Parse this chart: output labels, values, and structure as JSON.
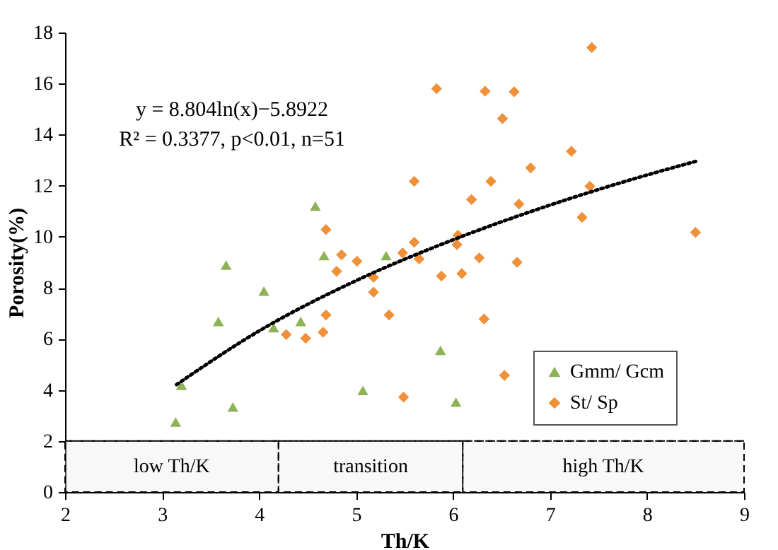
{
  "chart_data": {
    "type": "scatter",
    "xlabel": "Th/K",
    "ylabel": "Porosity(%)",
    "xlim": [
      2,
      9
    ],
    "xticks": [
      2,
      3,
      4,
      5,
      6,
      7,
      8,
      9
    ],
    "ylim": [
      0,
      18
    ],
    "yticks": [
      0,
      2,
      4,
      6,
      8,
      10,
      12,
      14,
      16,
      18
    ],
    "grid": false,
    "legend": "bottom right",
    "annotations": [
      "y = 8.804ln(x)−5.8922",
      "R² = 0.3377, p<0.01, n=51"
    ],
    "ref_lines": [
      {
        "axis": "y",
        "value": 2,
        "line_style": "dashed"
      }
    ],
    "bands": [
      {
        "axis": "x",
        "from": 2,
        "to": 4.2,
        "label": "low Th/K",
        "color": "#e8e8e8"
      },
      {
        "axis": "x",
        "from": 4.2,
        "to": 6.1,
        "label": "transition",
        "color": "#e8e8e8"
      },
      {
        "axis": "x",
        "from": 6.1,
        "to": 9,
        "label": "high Th/K",
        "color": "#e8e8e8"
      }
    ],
    "series": [
      {
        "name": "Gmm/ Gcm",
        "color": "#8db356",
        "marker": "triangle",
        "x": [
          3.14,
          3.2,
          3.73,
          5.07,
          5.87,
          6.03,
          4.58,
          3.66,
          4.67,
          5.31,
          4.05,
          3.58,
          4.43,
          4.15
        ],
        "values": [
          2.74,
          4.18,
          3.33,
          3.98,
          5.55,
          3.52,
          11.2,
          8.89,
          9.26,
          9.26,
          7.87,
          6.68,
          6.68,
          6.44
        ]
      },
      {
        "name": "St/ Sp",
        "color": "#f0913a",
        "marker": "diamond",
        "x": [
          5.6,
          4.69,
          5.6,
          4.85,
          5.01,
          5.48,
          4.8,
          5.18,
          5.18,
          5.34,
          4.69,
          4.28,
          4.48,
          4.66,
          7.43,
          5.83,
          6.33,
          6.63,
          6.51,
          7.22,
          6.8,
          6.39,
          7.41,
          6.19,
          6.68,
          7.33,
          8.5,
          5.65,
          6.05,
          6.04,
          6.27,
          6.66,
          5.88,
          6.09,
          6.32,
          5.49,
          6.53
        ],
        "values": [
          12.17,
          10.28,
          9.78,
          9.29,
          9.04,
          9.37,
          8.65,
          8.41,
          7.83,
          6.94,
          6.94,
          6.17,
          6.02,
          6.26,
          17.41,
          15.8,
          15.7,
          15.68,
          14.63,
          13.35,
          12.7,
          12.17,
          11.98,
          11.46,
          11.28,
          10.76,
          10.17,
          9.13,
          10.06,
          9.69,
          9.17,
          9.0,
          8.46,
          8.56,
          6.78,
          3.72,
          4.57
        ]
      },
      {
        "type": "line",
        "color": "#000000",
        "line_style": "dotted",
        "marker": "none",
        "x": [
          3.15,
          4,
          5,
          6,
          7,
          8,
          8.5
        ],
        "values": [
          4.21,
          6.31,
          8.28,
          9.88,
          11.24,
          12.42,
          12.95
        ]
      }
    ]
  }
}
